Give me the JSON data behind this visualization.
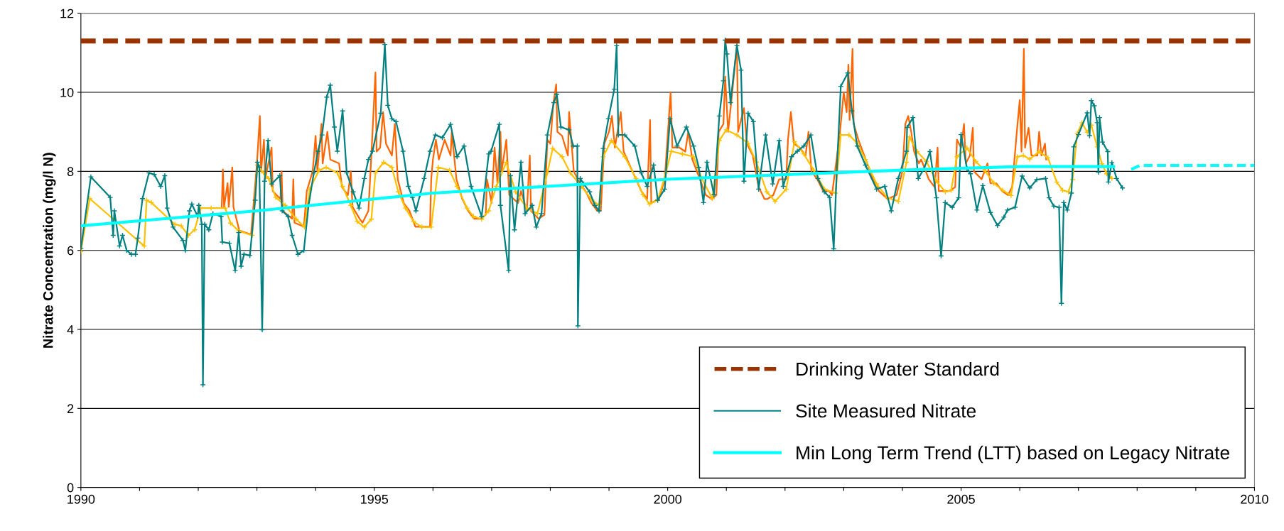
{
  "chart_data": {
    "type": "line",
    "ylabel": "Nitrate Concentration (mg/l N)",
    "xlim": [
      1990,
      2010
    ],
    "ylim": [
      0,
      12
    ],
    "xticks": [
      1990,
      {
        "value": 1991,
        "label": null
      },
      {
        "value": 1992,
        "label": null
      },
      {
        "value": 1993,
        "label": null
      },
      {
        "value": 1994,
        "label": null
      },
      1995,
      {
        "value": 1996,
        "label": null
      },
      {
        "value": 1997,
        "label": null
      },
      {
        "value": 1998,
        "label": null
      },
      {
        "value": 1999,
        "label": null
      },
      2000,
      {
        "value": 2001,
        "label": null
      },
      {
        "value": 2002,
        "label": null
      },
      {
        "value": 2003,
        "label": null
      },
      {
        "value": 2004,
        "label": null
      },
      2005,
      {
        "value": 2006,
        "label": null
      },
      {
        "value": 2007,
        "label": null
      },
      {
        "value": 2008,
        "label": null
      },
      {
        "value": 2009,
        "label": null
      },
      2010
    ],
    "yticks": [
      0,
      2,
      4,
      6,
      8,
      10,
      12
    ],
    "grid": "y",
    "legend": "bottom right",
    "ref_lines": [
      {
        "axis": "y",
        "value": 11.3,
        "label": "Drinking Water Standard",
        "color": "#993300",
        "line_style": "dashed"
      }
    ],
    "series": [
      {
        "color": "#ff6600",
        "marker": "none",
        "x": [
          1992.4,
          1992.42,
          1992.44,
          1992.5,
          1992.52,
          1992.58,
          1992.6,
          1992.7,
          1992.9,
          1993.0,
          1993.05,
          1993.07,
          1993.12,
          1993.14,
          1993.25,
          1993.27,
          1993.4,
          1993.42,
          1993.44,
          1993.6,
          1993.62,
          1993.64,
          1993.8,
          1993.85,
          1993.95,
          1994.0,
          1994.03,
          1994.1,
          1994.12,
          1994.2,
          1994.25,
          1994.4,
          1994.45,
          1994.55,
          1994.6,
          1994.63,
          1994.75,
          1994.8,
          1994.9,
          1994.95,
          1995.02,
          1995.04,
          1995.1,
          1995.15,
          1995.2,
          1995.3,
          1995.35,
          1995.4,
          1995.5,
          1995.6,
          1995.7,
          1995.85,
          1995.95,
          1995.97,
          1996.0,
          1996.05,
          1996.1,
          1996.2,
          1996.3,
          1996.32,
          1996.4,
          1996.5,
          1996.6,
          1996.7,
          1996.8,
          1996.9,
          1996.92,
          1997.0,
          1997.05,
          1997.1,
          1997.15,
          1997.17,
          1997.25,
          1997.3,
          1997.45,
          1997.5,
          1997.6,
          1997.65,
          1997.67,
          1997.8,
          1997.9,
          1997.95,
          1998.0,
          1998.05,
          1998.1,
          1998.12,
          1998.2,
          1998.3,
          1998.32,
          1998.4,
          1998.5,
          1998.6,
          1998.7,
          1998.8,
          1998.86,
          1998.92,
          1999.0,
          1999.05,
          1999.1,
          1999.2,
          1999.25,
          1999.4,
          1999.55,
          1999.65,
          1999.7,
          1999.72,
          1999.85,
          1999.95,
          2000.05,
          2000.08,
          2000.2,
          2000.3,
          2000.35,
          2000.42,
          2000.55,
          2000.65,
          2000.75,
          2000.83,
          2000.87,
          2000.95,
          2000.98,
          2001.03,
          2001.1,
          2001.18,
          2001.2,
          2001.3,
          2001.35,
          2001.45,
          2001.55,
          2001.65,
          2001.7,
          2001.8,
          2001.9,
          2002.02,
          2002.05,
          2002.1,
          2002.15,
          2002.25,
          2002.35,
          2002.4,
          2002.45,
          2002.55,
          2002.65,
          2002.75,
          2002.8,
          2002.93,
          2003.0,
          2003.05,
          2003.08,
          2003.1,
          2003.15,
          2003.17,
          2003.25,
          2003.35,
          2003.5,
          2003.6,
          2003.75,
          2003.9,
          2004.0,
          2004.05,
          2004.1,
          2004.15,
          2004.2,
          2004.28,
          2004.32,
          2004.45,
          2004.55,
          2004.6,
          2004.62,
          2004.75,
          2004.8,
          2004.9,
          2004.93,
          2005.0,
          2005.05,
          2005.08,
          2005.15,
          2005.2,
          2005.22,
          2005.35,
          2005.45,
          2005.5,
          2005.6,
          2005.7,
          2005.8,
          2005.87,
          2005.95,
          2006.0,
          2006.03,
          2006.07,
          2006.09,
          2006.15,
          2006.2,
          2006.3,
          2006.33,
          2006.37,
          2006.43,
          2006.45
        ],
        "values": [
          7.1,
          8.05,
          7.1,
          7.7,
          7.1,
          8.1,
          7.1,
          6.5,
          6.4,
          8.2,
          9.4,
          8.0,
          8.8,
          7.8,
          8.6,
          7.5,
          7.3,
          8.0,
          7.0,
          6.8,
          7.8,
          6.7,
          6.6,
          7.5,
          8.0,
          8.9,
          8.0,
          9.2,
          8.2,
          9.0,
          8.3,
          8.2,
          7.6,
          7.4,
          8.0,
          7.1,
          6.8,
          6.7,
          7.0,
          8.4,
          10.5,
          8.5,
          8.6,
          9.5,
          8.7,
          8.4,
          9.2,
          7.8,
          7.2,
          7.0,
          6.6,
          6.6,
          6.6,
          7.8,
          8.3,
          8.8,
          8.3,
          8.8,
          8.4,
          9.0,
          7.8,
          7.3,
          7.0,
          6.8,
          6.8,
          6.9,
          7.8,
          7.2,
          8.6,
          7.7,
          9.0,
          8.0,
          8.8,
          7.4,
          7.2,
          7.5,
          7.0,
          8.4,
          7.0,
          6.8,
          6.9,
          8.8,
          8.7,
          9.7,
          10.2,
          9.0,
          8.9,
          8.4,
          9.5,
          8.0,
          7.7,
          7.5,
          7.2,
          7.0,
          7.0,
          8.7,
          9.0,
          9.4,
          8.6,
          9.5,
          8.5,
          8.0,
          7.5,
          7.3,
          9.3,
          7.2,
          7.3,
          7.8,
          10.0,
          8.6,
          8.6,
          8.5,
          9.0,
          8.3,
          7.8,
          7.4,
          7.3,
          7.4,
          9.0,
          9.2,
          10.4,
          9.0,
          10.0,
          11.2,
          9.0,
          9.6,
          8.7,
          8.4,
          7.6,
          7.3,
          7.3,
          7.4,
          7.8,
          7.8,
          8.8,
          9.5,
          8.7,
          8.6,
          8.4,
          9.0,
          8.0,
          7.8,
          7.5,
          7.5,
          7.4,
          8.9,
          10.0,
          9.5,
          10.7,
          9.3,
          11.1,
          9.2,
          8.8,
          8.4,
          7.8,
          7.5,
          7.3,
          7.4,
          8.0,
          9.2,
          9.4,
          9.0,
          8.5,
          8.2,
          8.3,
          7.8,
          7.6,
          8.6,
          7.5,
          7.5,
          7.5,
          7.6,
          8.8,
          8.6,
          9.2,
          8.2,
          8.4,
          9.1,
          8.0,
          7.8,
          8.2,
          7.7,
          7.7,
          7.5,
          7.4,
          7.6,
          9.0,
          9.8,
          8.5,
          11.1,
          8.6,
          9.1,
          8.4,
          8.4,
          9.0,
          8.4,
          8.7,
          8.3
        ]
      },
      {
        "color": "#ffc000",
        "marker": "cross",
        "x": [
          1990.0,
          1990.15,
          1991.08,
          1991.12,
          1991.2,
          1991.6,
          1991.71,
          1991.83,
          1991.94,
          1992.04,
          1992.22,
          1992.46,
          1992.55,
          1992.69,
          1992.92,
          1993.01,
          1993.11,
          1993.2,
          1993.32,
          1993.48,
          1993.67,
          1993.81,
          1993.9,
          1994.06,
          1994.18,
          1994.37,
          1994.46,
          1994.6,
          1994.71,
          1994.83,
          1994.95,
          1995.02,
          1995.16,
          1995.3,
          1995.41,
          1995.53,
          1995.67,
          1995.81,
          1995.97,
          1996.09,
          1996.28,
          1996.41,
          1996.58,
          1996.69,
          1996.83,
          1996.95,
          1997.08,
          1997.25,
          1997.41,
          1997.6,
          1997.78,
          1997.95,
          1998.04,
          1998.2,
          1998.34,
          1998.53,
          1998.71,
          1998.83,
          1998.9,
          1999.04,
          1999.27,
          1999.46,
          1999.58,
          1999.69,
          1999.83,
          1999.97,
          2000.06,
          2000.25,
          2000.44,
          2000.58,
          2000.76,
          2000.88,
          2001.0,
          2001.18,
          2001.37,
          2001.51,
          2001.69,
          2001.83,
          2002.02,
          2002.16,
          2002.32,
          2002.49,
          2002.67,
          2002.86,
          2002.95,
          2003.09,
          2003.23,
          2003.37,
          2003.56,
          2003.74,
          2003.93,
          2004.07,
          2004.12,
          2004.25,
          2004.41,
          2004.58,
          2004.73,
          2004.83,
          2004.93,
          2005.1,
          2005.25,
          2005.41,
          2005.56,
          2005.71,
          2005.85,
          2005.96,
          2006.06,
          2006.17,
          2006.33,
          2006.48,
          2006.63,
          2006.73,
          2006.83,
          2006.9,
          2006.98,
          2007.06,
          2007.15,
          2007.22,
          2007.32,
          2007.4,
          2007.48,
          2007.57
        ],
        "values": [
          5.97,
          7.31,
          6.11,
          7.27,
          7.21,
          6.66,
          6.62,
          6.38,
          6.52,
          7.07,
          7.07,
          7.07,
          6.69,
          6.49,
          6.38,
          8.16,
          7.96,
          7.82,
          7.34,
          7.14,
          6.79,
          6.59,
          7.55,
          8.03,
          8.1,
          7.96,
          7.62,
          7.14,
          6.73,
          6.59,
          6.79,
          7.96,
          8.23,
          8.1,
          7.48,
          7.07,
          6.73,
          6.59,
          6.59,
          8.1,
          8.03,
          7.62,
          7.07,
          6.86,
          6.79,
          7.0,
          7.62,
          8.23,
          7.48,
          7.07,
          6.93,
          7.96,
          8.58,
          8.37,
          7.96,
          7.62,
          7.27,
          7.14,
          8.37,
          8.78,
          8.37,
          7.82,
          7.41,
          7.17,
          7.27,
          7.96,
          8.51,
          8.44,
          8.37,
          7.82,
          7.31,
          8.78,
          9.05,
          8.92,
          8.71,
          8.23,
          7.48,
          7.24,
          7.55,
          8.75,
          8.44,
          8.03,
          7.55,
          7.45,
          8.92,
          8.92,
          8.71,
          8.3,
          7.68,
          7.34,
          7.24,
          8.23,
          8.87,
          8.5,
          8.25,
          7.76,
          7.48,
          7.52,
          8.37,
          8.59,
          8.25,
          8.01,
          7.7,
          7.52,
          7.39,
          8.37,
          8.4,
          8.31,
          8.5,
          8.34,
          7.73,
          7.52,
          7.48,
          7.79,
          8.96,
          9.23,
          8.99,
          9.17,
          8.62,
          8.19,
          7.94,
          7.82
        ]
      },
      {
        "name": "Site Measured Nitrate",
        "color": "#008080",
        "marker": "cross",
        "x": [
          1990.0,
          1990.17,
          1990.5,
          1990.55,
          1990.57,
          1990.66,
          1990.71,
          1990.78,
          1990.86,
          1990.93,
          1990.97,
          1991.05,
          1991.16,
          1991.25,
          1991.36,
          1991.43,
          1991.47,
          1991.57,
          1991.74,
          1991.78,
          1991.85,
          1991.89,
          1991.99,
          1992.01,
          1992.06,
          1992.08,
          1992.11,
          1992.18,
          1992.25,
          1992.39,
          1992.41,
          1992.53,
          1992.63,
          1992.69,
          1992.73,
          1992.78,
          1992.88,
          1992.97,
          1993.01,
          1993.04,
          1993.09,
          1993.13,
          1993.19,
          1993.25,
          1993.39,
          1993.43,
          1993.53,
          1993.6,
          1993.7,
          1993.8,
          1993.88,
          1993.97,
          1994.04,
          1994.11,
          1994.19,
          1994.25,
          1994.32,
          1994.37,
          1994.46,
          1994.53,
          1994.64,
          1994.74,
          1994.83,
          1994.9,
          1994.97,
          1995.11,
          1995.18,
          1995.23,
          1995.3,
          1995.37,
          1995.49,
          1995.58,
          1995.65,
          1995.71,
          1995.78,
          1995.85,
          1995.95,
          1996.04,
          1996.16,
          1996.3,
          1996.41,
          1996.53,
          1996.65,
          1996.83,
          1996.95,
          1996.99,
          1997.13,
          1997.15,
          1997.29,
          1997.32,
          1997.39,
          1997.5,
          1997.57,
          1997.69,
          1997.76,
          1997.85,
          1997.95,
          1998.06,
          1998.11,
          1998.18,
          1998.32,
          1998.39,
          1998.46,
          1998.47,
          1998.51,
          1998.57,
          1998.67,
          1998.76,
          1998.83,
          1998.9,
          1998.99,
          1999.09,
          1999.13,
          1999.16,
          1999.27,
          1999.44,
          1999.55,
          1999.65,
          1999.76,
          1999.83,
          1999.95,
          2000.04,
          2000.16,
          2000.32,
          2000.44,
          2000.53,
          2000.61,
          2000.67,
          2000.79,
          2000.88,
          2000.95,
          2000.98,
          2001.01,
          2001.07,
          2001.18,
          2001.25,
          2001.3,
          2001.37,
          2001.46,
          2001.55,
          2001.67,
          2001.79,
          2001.9,
          2001.97,
          2002.11,
          2002.21,
          2002.32,
          2002.44,
          2002.56,
          2002.67,
          2002.76,
          2002.83,
          2002.88,
          2002.95,
          2003.07,
          2003.14,
          2003.23,
          2003.37,
          2003.56,
          2003.7,
          2003.81,
          2003.93,
          2004.07,
          2004.08,
          2004.18,
          2004.27,
          2004.37,
          2004.47,
          2004.58,
          2004.66,
          2004.73,
          2004.85,
          2004.96,
          2005.0,
          2005.1,
          2005.16,
          2005.27,
          2005.37,
          2005.5,
          2005.62,
          2005.73,
          2005.79,
          2005.92,
          2006.04,
          2006.17,
          2006.29,
          2006.44,
          2006.5,
          2006.58,
          2006.67,
          2006.71,
          2006.75,
          2006.81,
          2006.88,
          2006.92,
          2007.0,
          2007.15,
          2007.19,
          2007.22,
          2007.27,
          2007.32,
          2007.34,
          2007.36,
          2007.41,
          2007.5,
          2007.51,
          2007.57,
          2007.65,
          2007.75
        ],
        "values": [
          6.05,
          7.86,
          7.34,
          6.38,
          7.0,
          6.11,
          6.38,
          6.0,
          5.9,
          5.9,
          6.31,
          7.31,
          7.96,
          7.92,
          7.62,
          7.89,
          7.07,
          6.59,
          6.25,
          6.0,
          7.0,
          7.17,
          6.86,
          7.14,
          6.66,
          2.6,
          6.66,
          6.52,
          6.93,
          6.86,
          6.21,
          6.18,
          5.49,
          6.45,
          5.6,
          5.9,
          5.87,
          7.27,
          8.23,
          8.1,
          3.99,
          7.75,
          8.78,
          7.68,
          7.89,
          7.0,
          6.86,
          6.38,
          5.9,
          6.0,
          7.14,
          7.96,
          8.51,
          8.92,
          9.88,
          10.18,
          9.12,
          8.51,
          9.53,
          7.96,
          7.48,
          7.07,
          7.82,
          8.3,
          8.51,
          9.47,
          11.21,
          9.67,
          9.33,
          9.26,
          8.51,
          7.62,
          7.34,
          7.0,
          7.41,
          7.82,
          8.51,
          8.92,
          8.85,
          9.19,
          8.37,
          8.64,
          7.62,
          6.86,
          8.44,
          8.51,
          9.19,
          7.14,
          5.49,
          7.89,
          6.52,
          8.23,
          6.93,
          7.14,
          6.59,
          6.93,
          8.92,
          9.74,
          9.95,
          9.12,
          9.05,
          8.64,
          8.64,
          4.09,
          7.82,
          7.68,
          7.48,
          7.14,
          7.0,
          8.58,
          9.33,
          10.08,
          11.18,
          8.92,
          8.92,
          8.64,
          7.96,
          7.62,
          8.16,
          7.27,
          7.55,
          9.33,
          8.64,
          9.12,
          8.64,
          8.1,
          7.21,
          8.23,
          7.41,
          9.4,
          10.29,
          11.32,
          10.97,
          9.74,
          11.18,
          10.56,
          7.75,
          9.47,
          9.26,
          7.55,
          8.92,
          7.68,
          8.78,
          7.62,
          8.37,
          8.51,
          8.64,
          8.92,
          7.82,
          7.48,
          7.34,
          6.04,
          7.96,
          10.15,
          10.49,
          9.53,
          8.64,
          8.16,
          7.55,
          7.62,
          7.0,
          7.82,
          8.51,
          9.11,
          9.36,
          7.82,
          8.07,
          8.5,
          7.33,
          5.86,
          7.21,
          7.09,
          7.33,
          8.93,
          8.07,
          7.94,
          7.02,
          7.64,
          6.96,
          6.63,
          6.84,
          7.02,
          7.09,
          7.88,
          7.58,
          7.79,
          7.82,
          7.33,
          7.12,
          7.09,
          4.66,
          7.21,
          7.02,
          7.45,
          8.62,
          8.93,
          9.48,
          8.9,
          9.79,
          9.66,
          9.23,
          7.98,
          9.36,
          8.74,
          8.5,
          7.73,
          8.22,
          7.82,
          7.58
        ]
      },
      {
        "name": "Min Long Term Trend (LTT) based on Legacy Nitrate",
        "color": "#00ffff",
        "marker": "none",
        "line_style": "solid",
        "x": [
          1990,
          1993,
          1996,
          2000,
          2004,
          2006,
          2007.6
        ],
        "values": [
          6.62,
          7.0,
          7.45,
          7.8,
          8.03,
          8.12,
          8.12
        ]
      },
      {
        "color": "#00ffff",
        "marker": "none",
        "line_style": "dashed",
        "x": [
          2007.9,
          2008.05,
          2010
        ],
        "values": [
          8.05,
          8.15,
          8.15
        ]
      }
    ]
  }
}
